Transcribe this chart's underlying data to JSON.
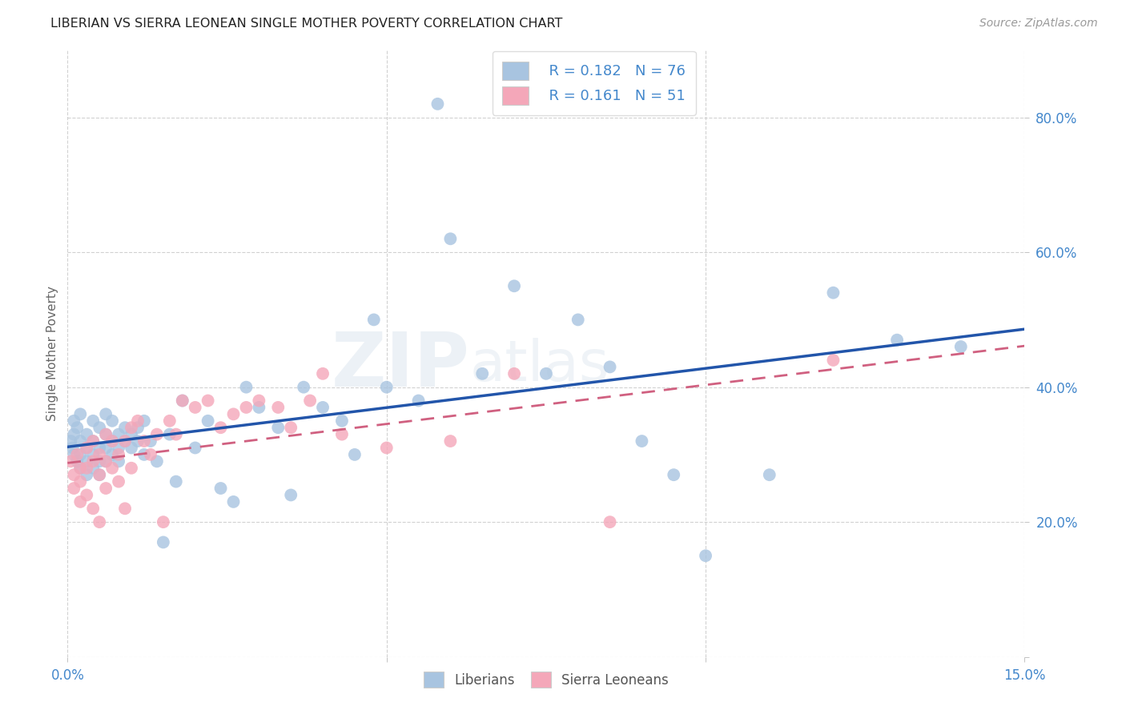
{
  "title": "LIBERIAN VS SIERRA LEONEAN SINGLE MOTHER POVERTY CORRELATION CHART",
  "source": "Source: ZipAtlas.com",
  "ylabel": "Single Mother Poverty",
  "xlim": [
    0.0,
    0.15
  ],
  "ylim": [
    0.0,
    0.9
  ],
  "grid_color": "#cccccc",
  "background_color": "#ffffff",
  "liberian_color": "#a8c4e0",
  "sierra_leone_color": "#f4a7b9",
  "liberian_line_color": "#2255aa",
  "sierra_leone_line_color": "#d06080",
  "tick_color": "#4488cc",
  "watermark": "ZIPatlas",
  "liberian_x": [
    0.0005,
    0.0008,
    0.001,
    0.001,
    0.001,
    0.0015,
    0.0015,
    0.002,
    0.002,
    0.002,
    0.002,
    0.003,
    0.003,
    0.003,
    0.003,
    0.004,
    0.004,
    0.004,
    0.004,
    0.005,
    0.005,
    0.005,
    0.005,
    0.006,
    0.006,
    0.006,
    0.006,
    0.007,
    0.007,
    0.007,
    0.008,
    0.008,
    0.008,
    0.009,
    0.009,
    0.01,
    0.01,
    0.011,
    0.011,
    0.012,
    0.012,
    0.013,
    0.014,
    0.015,
    0.016,
    0.017,
    0.018,
    0.02,
    0.022,
    0.024,
    0.026,
    0.028,
    0.03,
    0.033,
    0.035,
    0.037,
    0.04,
    0.043,
    0.045,
    0.048,
    0.05,
    0.055,
    0.058,
    0.06,
    0.065,
    0.07,
    0.075,
    0.08,
    0.085,
    0.09,
    0.095,
    0.1,
    0.11,
    0.12,
    0.13,
    0.14
  ],
  "liberian_y": [
    0.32,
    0.31,
    0.33,
    0.3,
    0.35,
    0.29,
    0.34,
    0.32,
    0.3,
    0.28,
    0.36,
    0.33,
    0.31,
    0.29,
    0.27,
    0.35,
    0.32,
    0.3,
    0.28,
    0.34,
    0.31,
    0.29,
    0.27,
    0.36,
    0.33,
    0.31,
    0.29,
    0.35,
    0.32,
    0.3,
    0.33,
    0.31,
    0.29,
    0.34,
    0.32,
    0.33,
    0.31,
    0.34,
    0.32,
    0.35,
    0.3,
    0.32,
    0.29,
    0.17,
    0.33,
    0.26,
    0.38,
    0.31,
    0.35,
    0.25,
    0.23,
    0.4,
    0.37,
    0.34,
    0.24,
    0.4,
    0.37,
    0.35,
    0.3,
    0.5,
    0.4,
    0.38,
    0.82,
    0.62,
    0.42,
    0.55,
    0.42,
    0.5,
    0.43,
    0.32,
    0.27,
    0.15,
    0.27,
    0.54,
    0.47,
    0.46
  ],
  "sierra_x": [
    0.0005,
    0.001,
    0.001,
    0.0015,
    0.002,
    0.002,
    0.002,
    0.003,
    0.003,
    0.003,
    0.004,
    0.004,
    0.004,
    0.005,
    0.005,
    0.005,
    0.006,
    0.006,
    0.006,
    0.007,
    0.007,
    0.008,
    0.008,
    0.009,
    0.009,
    0.01,
    0.01,
    0.011,
    0.012,
    0.013,
    0.014,
    0.015,
    0.016,
    0.017,
    0.018,
    0.02,
    0.022,
    0.024,
    0.026,
    0.028,
    0.03,
    0.033,
    0.035,
    0.038,
    0.04,
    0.043,
    0.05,
    0.06,
    0.07,
    0.085,
    0.12
  ],
  "sierra_y": [
    0.29,
    0.27,
    0.25,
    0.3,
    0.28,
    0.26,
    0.23,
    0.31,
    0.28,
    0.24,
    0.32,
    0.29,
    0.22,
    0.3,
    0.27,
    0.2,
    0.33,
    0.29,
    0.25,
    0.32,
    0.28,
    0.3,
    0.26,
    0.32,
    0.22,
    0.34,
    0.28,
    0.35,
    0.32,
    0.3,
    0.33,
    0.2,
    0.35,
    0.33,
    0.38,
    0.37,
    0.38,
    0.34,
    0.36,
    0.37,
    0.38,
    0.37,
    0.34,
    0.38,
    0.42,
    0.33,
    0.31,
    0.32,
    0.42,
    0.2,
    0.44
  ]
}
